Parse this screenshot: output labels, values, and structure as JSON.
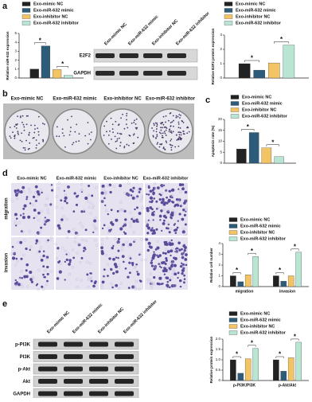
{
  "panels": {
    "letters": [
      "a",
      "b",
      "c",
      "d",
      "e"
    ]
  },
  "blot_a": {
    "columns": [
      "Exo-mimic NC",
      "Exo-miR-632 mimic",
      "Exo-inhibitor NC",
      "Exo-miR-632 inhibitor"
    ],
    "rows": [
      "E2F2",
      "GAPDH"
    ]
  },
  "plates_b": {
    "columns": [
      "Exo-mimic NC",
      "Exo-miR-632 mimic",
      "Exo-inhibitor NC",
      "Exo-miR-632 inhibitor"
    ]
  },
  "images_d": {
    "columns": [
      "Exo-mimic NC",
      "Exo-miR-632 mimic",
      "Exo-inhibitor NC",
      "Exo-miR-632 inhibitor"
    ],
    "rows": [
      "migration",
      "invasion"
    ]
  },
  "blot_e": {
    "columns": [
      "Exo-mimic NC",
      "Exo-miR-632 mimic",
      "Exo-inhibitor NC",
      "Exo-miR-632 inhibitor"
    ],
    "rows": [
      "p-PI3K",
      "PI3K",
      "p-Akt",
      "Akt",
      "GAPDH"
    ]
  },
  "chart_data": [
    {
      "type": "bar",
      "y_label": "Relative miR-632 expression",
      "categories": [
        null
      ],
      "series": [
        {
          "name": "Exo-mimic NC",
          "color": "#222222",
          "values": [
            1.0
          ]
        },
        {
          "name": "Exo-miR-632 mimic",
          "color": "#2d5b7a",
          "values": [
            3.6
          ]
        },
        {
          "name": "Exo-inhibitor NC",
          "color": "#f2c464",
          "values": [
            0.95
          ]
        },
        {
          "name": "Exo-miR-632 inhibitor",
          "color": "#b9e6d2",
          "values": [
            0.3
          ]
        }
      ],
      "ylim": [
        0,
        5
      ],
      "yticks": [
        0,
        1,
        2,
        3,
        4,
        5
      ],
      "annotations": [
        "*",
        "*"
      ]
    },
    {
      "type": "bar",
      "y_label": "Relative E2F2 protein expression",
      "categories": [
        null
      ],
      "series": [
        {
          "name": "Exo-mimic NC",
          "color": "#222222",
          "values": [
            1.0
          ]
        },
        {
          "name": "Exo-miR-632 mimic",
          "color": "#2d5b7a",
          "values": [
            0.55
          ]
        },
        {
          "name": "Exo-inhibitor NC",
          "color": "#f2c464",
          "values": [
            1.05
          ]
        },
        {
          "name": "Exo-miR-632 inhibitor",
          "color": "#b9e6d2",
          "values": [
            2.3
          ]
        }
      ],
      "ylim": [
        0,
        3
      ],
      "yticks": [
        0,
        1,
        2,
        3
      ],
      "annotations": [
        "*",
        "*"
      ]
    },
    {
      "type": "bar",
      "y_label": "Apoptosis rate (%)",
      "categories": [
        null
      ],
      "series": [
        {
          "name": "Exo-mimic NC",
          "color": "#222222",
          "values": [
            6.5
          ]
        },
        {
          "name": "Exo-miR-632 mimic",
          "color": "#2d5b7a",
          "values": [
            14
          ]
        },
        {
          "name": "Exo-inhibitor NC",
          "color": "#f2c464",
          "values": [
            7
          ]
        },
        {
          "name": "Exo-miR-632 inhibitor",
          "color": "#b9e6d2",
          "values": [
            3
          ]
        }
      ],
      "ylim": [
        0,
        20
      ],
      "yticks": [
        0,
        5,
        10,
        15,
        20
      ],
      "annotations": [
        "*",
        "*"
      ]
    },
    {
      "type": "bar",
      "y_label": "Relative cell number",
      "categories": [
        "migration",
        "invasion"
      ],
      "series": [
        {
          "name": "Exo-mimic NC",
          "color": "#222222",
          "values": [
            1.0,
            1.0
          ]
        },
        {
          "name": "Exo-miR-632 mimic",
          "color": "#2d5b7a",
          "values": [
            0.45,
            0.5
          ]
        },
        {
          "name": "Exo-inhibitor NC",
          "color": "#f2c464",
          "values": [
            1.1,
            1.0
          ]
        },
        {
          "name": "Exo-miR-632 inhibitor",
          "color": "#b9e6d2",
          "values": [
            2.8,
            3.2
          ]
        }
      ],
      "ylim": [
        0,
        4
      ],
      "yticks": [
        0,
        1,
        2,
        3,
        4
      ],
      "annotations": [
        "*",
        "*",
        "*",
        "*"
      ]
    },
    {
      "type": "bar",
      "y_label": "Relative protein expression",
      "categories": [
        "p-PI3K/PI3K",
        "p-Akt/Akt"
      ],
      "series": [
        {
          "name": "Exo-mimic NC",
          "color": "#222222",
          "values": [
            1.0,
            1.0
          ]
        },
        {
          "name": "Exo-miR-632 mimic",
          "color": "#2d5b7a",
          "values": [
            0.35,
            0.45
          ]
        },
        {
          "name": "Exo-inhibitor NC",
          "color": "#f2c464",
          "values": [
            1.05,
            1.1
          ]
        },
        {
          "name": "Exo-miR-632 inhibitor",
          "color": "#b9e6d2",
          "values": [
            1.55,
            1.85
          ]
        }
      ],
      "ylim": [
        0,
        2
      ],
      "yticks": [
        0,
        0.5,
        {
          "value": 1,
          "label": "1.0"
        },
        1.5,
        {
          "value": 2,
          "label": "2.0"
        }
      ],
      "annotations": [
        "*",
        "*",
        "*",
        "*"
      ]
    }
  ]
}
